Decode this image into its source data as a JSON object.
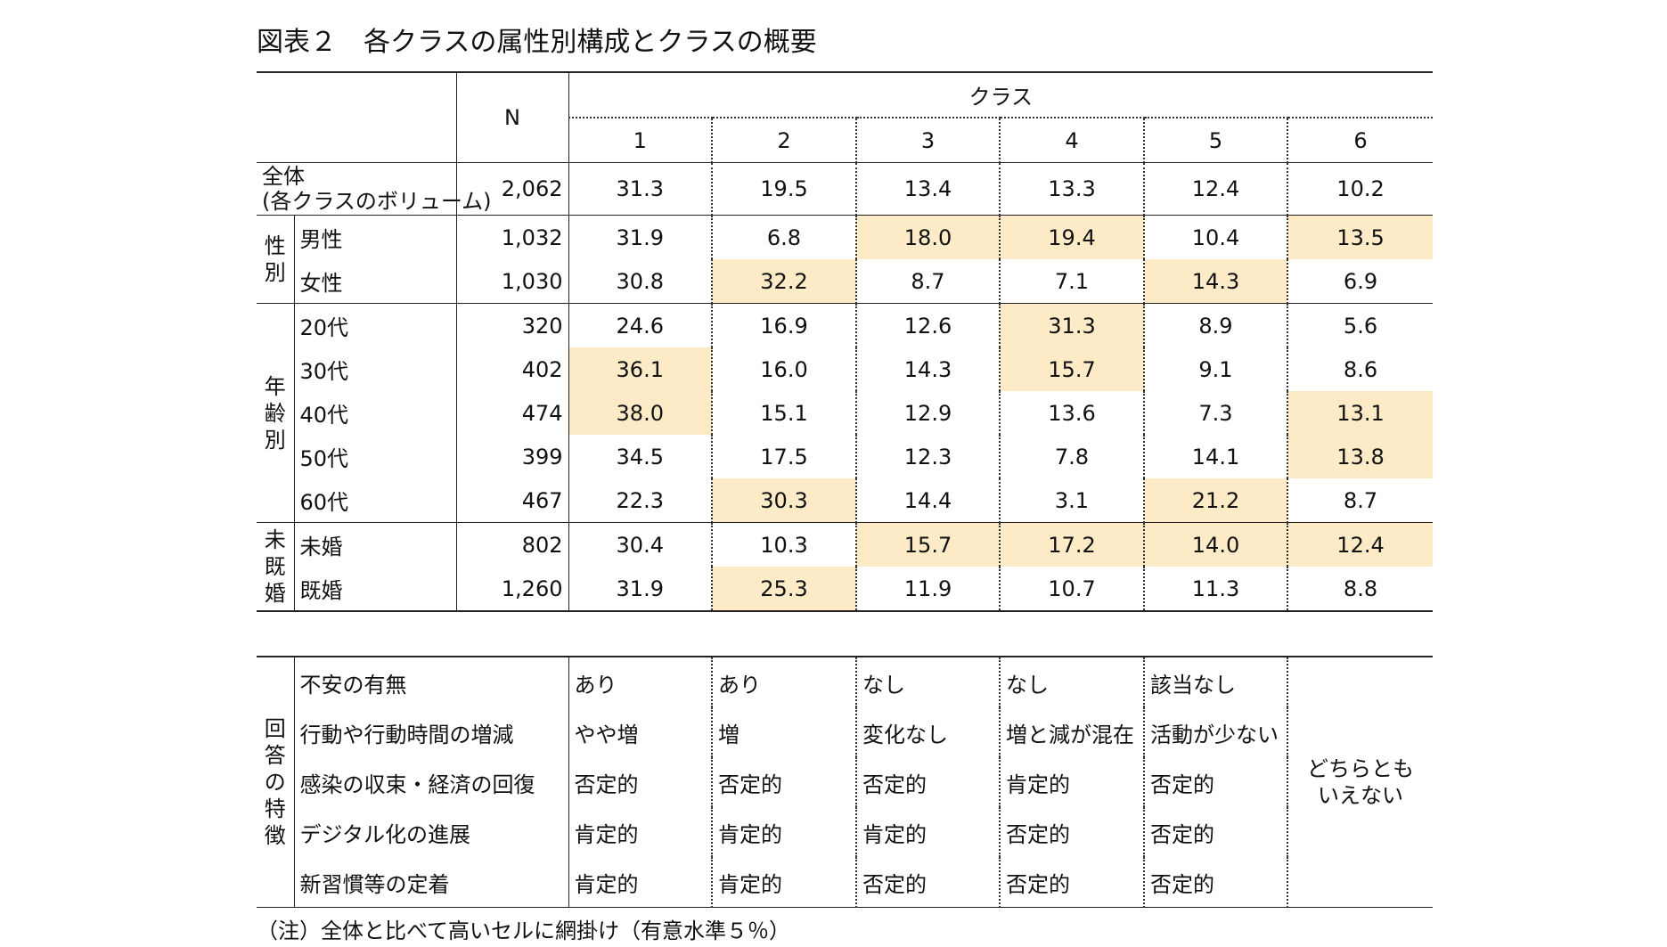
{
  "title": "図表２　各クラスの属性別構成とクラスの概要",
  "header": {
    "n_label": "N",
    "class_label": "クラス",
    "classes": [
      "1",
      "2",
      "3",
      "4",
      "5",
      "6"
    ]
  },
  "overall": {
    "label_line1": "全体",
    "label_line2": "(各クラスのボリューム)",
    "n": "2,062",
    "values": [
      "31.3",
      "19.5",
      "13.4",
      "13.3",
      "12.4",
      "10.2"
    ]
  },
  "groups": [
    {
      "category": "性別",
      "rows": [
        {
          "label": "男性",
          "n": "1,032",
          "values": [
            "31.9",
            "6.8",
            "18.0",
            "19.4",
            "10.4",
            "13.5"
          ],
          "highlight": [
            false,
            false,
            true,
            true,
            false,
            true
          ]
        },
        {
          "label": "女性",
          "n": "1,030",
          "values": [
            "30.8",
            "32.2",
            "8.7",
            "7.1",
            "14.3",
            "6.9"
          ],
          "highlight": [
            false,
            true,
            false,
            false,
            true,
            false
          ]
        }
      ]
    },
    {
      "category": "年齢別",
      "rows": [
        {
          "label": "20代",
          "n": "320",
          "values": [
            "24.6",
            "16.9",
            "12.6",
            "31.3",
            "8.9",
            "5.6"
          ],
          "highlight": [
            false,
            false,
            false,
            true,
            false,
            false
          ]
        },
        {
          "label": "30代",
          "n": "402",
          "values": [
            "36.1",
            "16.0",
            "14.3",
            "15.7",
            "9.1",
            "8.6"
          ],
          "highlight": [
            true,
            false,
            false,
            true,
            false,
            false
          ]
        },
        {
          "label": "40代",
          "n": "474",
          "values": [
            "38.0",
            "15.1",
            "12.9",
            "13.6",
            "7.3",
            "13.1"
          ],
          "highlight": [
            true,
            false,
            false,
            false,
            false,
            true
          ]
        },
        {
          "label": "50代",
          "n": "399",
          "values": [
            "34.5",
            "17.5",
            "12.3",
            "7.8",
            "14.1",
            "13.8"
          ],
          "highlight": [
            false,
            false,
            false,
            false,
            false,
            true
          ]
        },
        {
          "label": "60代",
          "n": "467",
          "values": [
            "22.3",
            "30.3",
            "14.4",
            "3.1",
            "21.2",
            "8.7"
          ],
          "highlight": [
            false,
            true,
            false,
            false,
            true,
            false
          ]
        }
      ]
    },
    {
      "category": "未既婚",
      "rows": [
        {
          "label": "未婚",
          "n": "802",
          "values": [
            "30.4",
            "10.3",
            "15.7",
            "17.2",
            "14.0",
            "12.4"
          ],
          "highlight": [
            false,
            false,
            true,
            true,
            true,
            true
          ]
        },
        {
          "label": "既婚",
          "n": "1,260",
          "values": [
            "31.9",
            "25.3",
            "11.9",
            "10.7",
            "11.3",
            "8.8"
          ],
          "highlight": [
            false,
            true,
            false,
            false,
            false,
            false
          ]
        }
      ]
    }
  ],
  "responses": {
    "category": "回答の特徴",
    "rows": [
      {
        "label": "不安の有無",
        "values": [
          "あり",
          "あり",
          "なし",
          "なし",
          "該当なし"
        ]
      },
      {
        "label": "行動や行動時間の増減",
        "values": [
          "やや増",
          "増",
          "変化なし",
          "増と減が混在",
          "活動が少ない"
        ]
      },
      {
        "label": "感染の収束・経済の回復",
        "values": [
          "否定的",
          "否定的",
          "否定的",
          "肯定的",
          "否定的"
        ]
      },
      {
        "label": "デジタル化の進展",
        "values": [
          "肯定的",
          "肯定的",
          "肯定的",
          "否定的",
          "否定的"
        ]
      },
      {
        "label": "新習慣等の定着",
        "values": [
          "肯定的",
          "肯定的",
          "否定的",
          "否定的",
          "否定的"
        ]
      }
    ],
    "class6_line1": "どちらとも",
    "class6_line2": "いえない"
  },
  "note": "（注）全体と比べて高いセルに網掛け（有意水準５％）",
  "colors": {
    "highlight": "#fcebc6",
    "rule": "#222222"
  }
}
